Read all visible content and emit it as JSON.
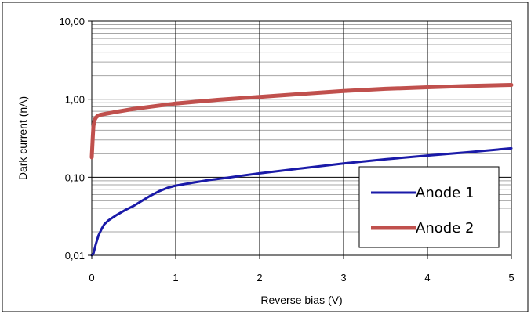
{
  "chart_data": {
    "type": "line",
    "xlabel": "Reverse bias (V)",
    "ylabel": "Dark current  (nA)",
    "y_scale": "log",
    "xlim": [
      0,
      5
    ],
    "ylim": [
      0.01,
      10
    ],
    "x_ticks": [
      0,
      1,
      2,
      3,
      4,
      5
    ],
    "x_tick_labels": [
      "0",
      "1",
      "2",
      "3",
      "4",
      "5"
    ],
    "y_ticks": [
      0.01,
      0.1,
      1,
      10
    ],
    "y_tick_labels": [
      "0,01",
      "0,10",
      "1,00",
      "10,00"
    ],
    "grid": "major and minor horizontal, major vertical",
    "legend_position": "bottom-right",
    "series": [
      {
        "name": "Anode 1",
        "color": "#1a1aa8",
        "x": [
          0.0,
          0.02,
          0.05,
          0.08,
          0.12,
          0.15,
          0.2,
          0.3,
          0.4,
          0.5,
          0.6,
          0.7,
          0.8,
          0.9,
          1.0,
          1.2,
          1.4,
          1.6,
          1.8,
          2.0,
          2.5,
          3.0,
          3.5,
          4.0,
          4.5,
          5.0
        ],
        "y": [
          0.01,
          0.0105,
          0.014,
          0.018,
          0.022,
          0.025,
          0.028,
          0.033,
          0.038,
          0.043,
          0.05,
          0.058,
          0.066,
          0.073,
          0.078,
          0.085,
          0.092,
          0.098,
          0.105,
          0.112,
          0.13,
          0.15,
          0.17,
          0.19,
          0.21,
          0.235
        ]
      },
      {
        "name": "Anode 2",
        "color": "#c0504d",
        "x": [
          0.0,
          0.01,
          0.02,
          0.03,
          0.05,
          0.07,
          0.1,
          0.15,
          0.2,
          0.3,
          0.5,
          0.7,
          1.0,
          1.5,
          2.0,
          2.5,
          3.0,
          3.5,
          4.0,
          4.5,
          5.0
        ],
        "y": [
          0.18,
          0.3,
          0.45,
          0.53,
          0.58,
          0.61,
          0.63,
          0.645,
          0.66,
          0.69,
          0.75,
          0.8,
          0.88,
          0.98,
          1.07,
          1.17,
          1.27,
          1.36,
          1.42,
          1.48,
          1.52
        ]
      }
    ]
  }
}
